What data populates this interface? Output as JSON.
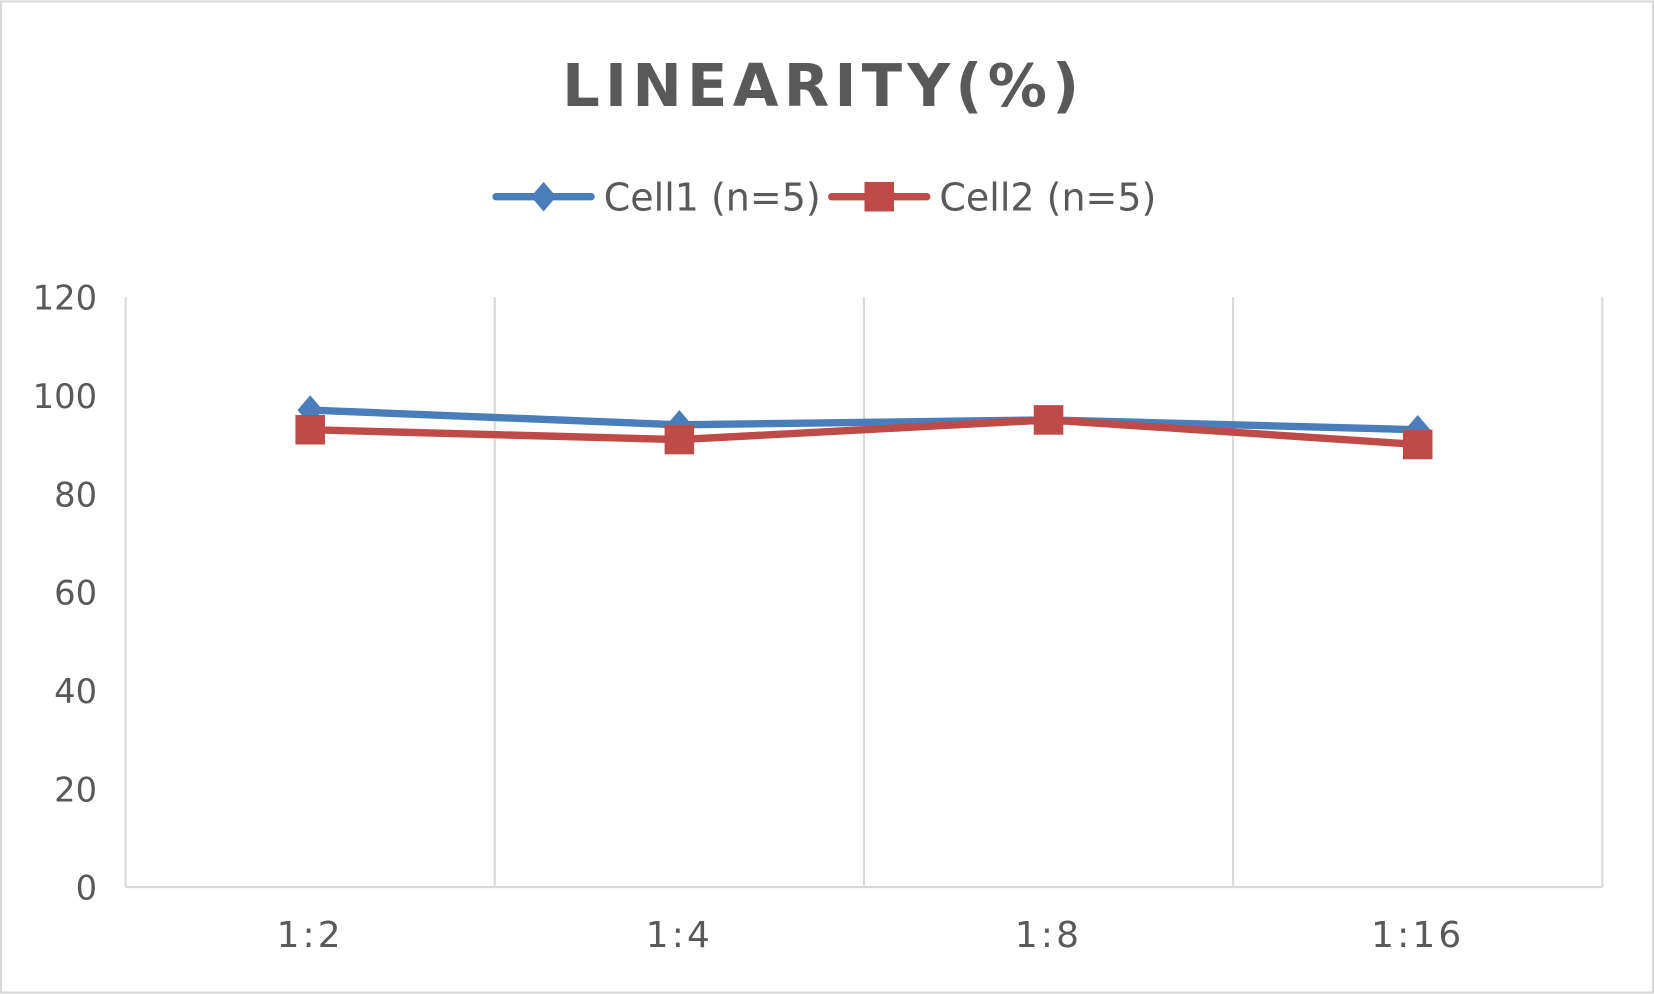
{
  "chart_data": {
    "type": "line",
    "title": "LINEARITY(%)",
    "categories": [
      "1:2",
      "1:4",
      "1:8",
      "1:16"
    ],
    "series": [
      {
        "name": "Cell1 (n=5)",
        "values": [
          97,
          94,
          95,
          93
        ],
        "color": "#4a7ebb",
        "marker": "diamond"
      },
      {
        "name": "Cell2 (n=5)",
        "values": [
          93,
          91,
          95,
          90
        ],
        "color": "#be4b48",
        "marker": "square"
      }
    ],
    "ylim": [
      0,
      120
    ],
    "yticks": [
      "0",
      "20",
      "40",
      "60",
      "80",
      "100",
      "120"
    ],
    "grid": "vertical",
    "legend": "top"
  }
}
